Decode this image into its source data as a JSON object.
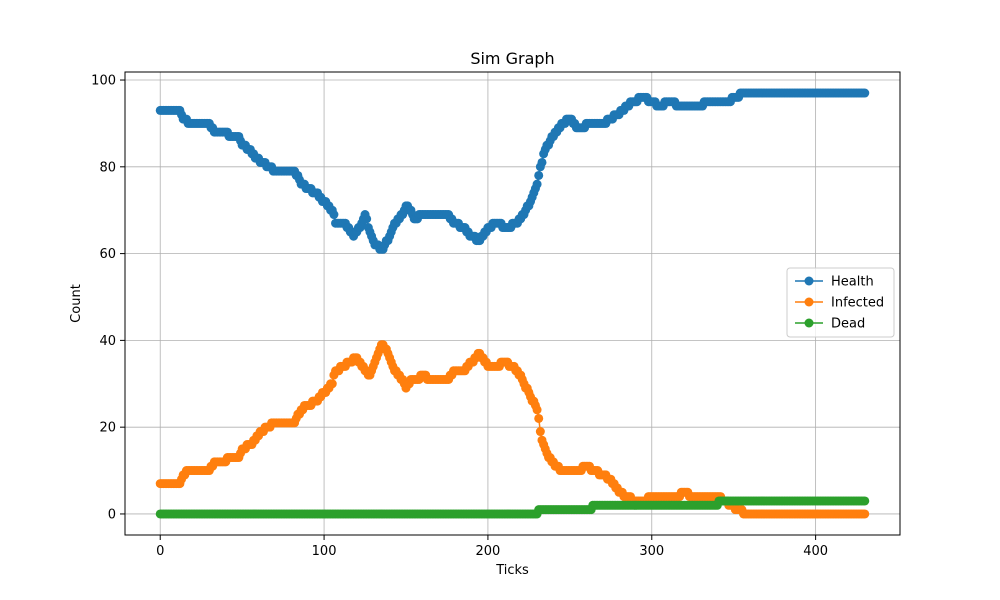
{
  "chart_data": {
    "type": "scatter",
    "title": "Sim Graph",
    "xlabel": "Ticks",
    "ylabel": "Count",
    "xlim": [
      -21.5,
      451.5
    ],
    "ylim": [
      -4.85,
      101.85
    ],
    "xticks": [
      "0",
      "100",
      "200",
      "300",
      "400"
    ],
    "yticks": [
      "0",
      "20",
      "40",
      "60",
      "80",
      "100"
    ],
    "grid": true,
    "legend": "center-right",
    "x_range": [
      0,
      430
    ],
    "series": [
      {
        "name": "Health",
        "color": "#1f77b4",
        "knots": [
          [
            0,
            93
          ],
          [
            12,
            93
          ],
          [
            14,
            91
          ],
          [
            18,
            90
          ],
          [
            30,
            90
          ],
          [
            33,
            88
          ],
          [
            40,
            88
          ],
          [
            42,
            87
          ],
          [
            48,
            87
          ],
          [
            50,
            85
          ],
          [
            55,
            84
          ],
          [
            58,
            82
          ],
          [
            62,
            81
          ],
          [
            70,
            79
          ],
          [
            82,
            79
          ],
          [
            86,
            76
          ],
          [
            90,
            75
          ],
          [
            95,
            74
          ],
          [
            100,
            72
          ],
          [
            105,
            70
          ],
          [
            107,
            67
          ],
          [
            112,
            67
          ],
          [
            115,
            66
          ],
          [
            118,
            64
          ],
          [
            122,
            66
          ],
          [
            125,
            69
          ],
          [
            128,
            65
          ],
          [
            131,
            62
          ],
          [
            136,
            61
          ],
          [
            140,
            64
          ],
          [
            143,
            67
          ],
          [
            148,
            69
          ],
          [
            150,
            71
          ],
          [
            153,
            70
          ],
          [
            155,
            68
          ],
          [
            160,
            69
          ],
          [
            175,
            69
          ],
          [
            180,
            67
          ],
          [
            185,
            66
          ],
          [
            190,
            64
          ],
          [
            195,
            63
          ],
          [
            200,
            66
          ],
          [
            205,
            67
          ],
          [
            212,
            66
          ],
          [
            218,
            67
          ],
          [
            222,
            69
          ],
          [
            226,
            72
          ],
          [
            230,
            76
          ],
          [
            234,
            83
          ],
          [
            238,
            86
          ],
          [
            242,
            88
          ],
          [
            245,
            90
          ],
          [
            250,
            91
          ],
          [
            255,
            89
          ],
          [
            265,
            90
          ],
          [
            270,
            90
          ],
          [
            275,
            91
          ],
          [
            282,
            93
          ],
          [
            288,
            95
          ],
          [
            295,
            96
          ],
          [
            300,
            95
          ],
          [
            305,
            94
          ],
          [
            310,
            95
          ],
          [
            318,
            94
          ],
          [
            345,
            95
          ],
          [
            352,
            96
          ],
          [
            355,
            97
          ],
          [
            430,
            97
          ]
        ]
      },
      {
        "name": "Infected",
        "color": "#ff7f0e",
        "knots": [
          [
            0,
            7
          ],
          [
            12,
            7
          ],
          [
            14,
            9
          ],
          [
            18,
            10
          ],
          [
            30,
            10
          ],
          [
            33,
            12
          ],
          [
            40,
            12
          ],
          [
            42,
            13
          ],
          [
            48,
            13
          ],
          [
            50,
            15
          ],
          [
            55,
            16
          ],
          [
            60,
            18
          ],
          [
            62,
            19
          ],
          [
            70,
            21
          ],
          [
            82,
            21
          ],
          [
            86,
            24
          ],
          [
            90,
            25
          ],
          [
            95,
            26
          ],
          [
            100,
            28
          ],
          [
            105,
            30
          ],
          [
            107,
            33
          ],
          [
            112,
            34
          ],
          [
            115,
            35
          ],
          [
            120,
            36
          ],
          [
            123,
            34
          ],
          [
            128,
            32
          ],
          [
            131,
            35
          ],
          [
            135,
            39
          ],
          [
            139,
            37
          ],
          [
            143,
            33
          ],
          [
            148,
            31
          ],
          [
            150,
            29
          ],
          [
            153,
            31
          ],
          [
            158,
            31
          ],
          [
            160,
            32
          ],
          [
            165,
            31
          ],
          [
            175,
            31
          ],
          [
            180,
            33
          ],
          [
            185,
            33
          ],
          [
            190,
            35
          ],
          [
            195,
            37
          ],
          [
            200,
            34
          ],
          [
            205,
            34
          ],
          [
            210,
            35
          ],
          [
            218,
            33
          ],
          [
            222,
            30
          ],
          [
            226,
            27
          ],
          [
            230,
            24
          ],
          [
            233,
            17
          ],
          [
            237,
            13
          ],
          [
            242,
            11
          ],
          [
            245,
            10
          ],
          [
            255,
            10
          ],
          [
            260,
            11
          ],
          [
            265,
            10
          ],
          [
            270,
            9
          ],
          [
            275,
            8
          ],
          [
            280,
            5
          ],
          [
            285,
            4
          ],
          [
            290,
            3
          ],
          [
            295,
            3
          ],
          [
            300,
            4
          ],
          [
            310,
            4
          ],
          [
            315,
            4
          ],
          [
            320,
            5
          ],
          [
            325,
            4
          ],
          [
            340,
            4
          ],
          [
            345,
            3
          ],
          [
            348,
            2
          ],
          [
            352,
            1
          ],
          [
            358,
            0
          ],
          [
            430,
            0
          ]
        ]
      },
      {
        "name": "Dead",
        "color": "#2ca02c",
        "knots": [
          [
            0,
            0
          ],
          [
            230,
            0
          ],
          [
            232,
            1
          ],
          [
            262,
            1
          ],
          [
            265,
            2
          ],
          [
            340,
            2
          ],
          [
            342,
            3
          ],
          [
            430,
            3
          ]
        ]
      }
    ]
  }
}
